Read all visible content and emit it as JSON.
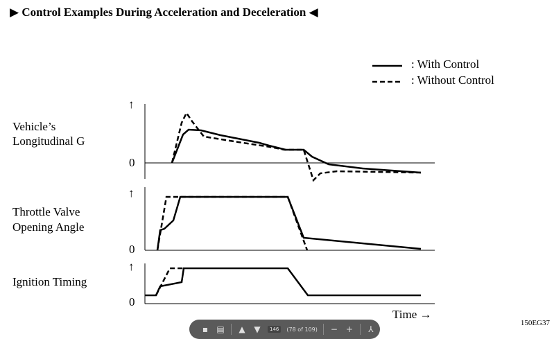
{
  "title": "▶ Control Examples During Acceleration and Deceleration ◀",
  "legend": {
    "with_control": ": With Control",
    "without_control": ": Without Control"
  },
  "panels": [
    {
      "label_line1": "Vehicle’s",
      "label_line2": "Longitudinal G",
      "zero": "0",
      "arrow": "↑"
    },
    {
      "label_line1": "Throttle Valve",
      "label_line2": "Opening Angle",
      "zero": "0",
      "arrow": "↑"
    },
    {
      "label_line1": "Ignition Timing",
      "label_line2": "",
      "zero": "0",
      "arrow": "↑"
    }
  ],
  "x_axis_label": "Time →",
  "figure_code": "150EG37",
  "toolbar": {
    "page_input": "146",
    "page_count": "(78 of 109)"
  },
  "chart_data": {
    "type": "line",
    "series_styles": {
      "with_control": "solid",
      "without_control": "dashed"
    },
    "panels": [
      {
        "name": "Vehicle’s Longitudinal G",
        "with_control": [
          [
            0,
            0
          ],
          [
            8,
            38
          ],
          [
            12,
            42
          ],
          [
            21,
            41
          ],
          [
            35,
            34
          ],
          [
            63,
            27
          ],
          [
            70,
            23
          ],
          [
            80,
            23
          ],
          [
            85,
            10
          ],
          [
            100,
            0
          ],
          [
            150,
            -15
          ]
        ],
        "without_control": [
          [
            0,
            0
          ],
          [
            8,
            65
          ],
          [
            12,
            80
          ],
          [
            18,
            55
          ],
          [
            35,
            30
          ],
          [
            63,
            24
          ],
          [
            70,
            23
          ],
          [
            80,
            23
          ],
          [
            85,
            -20
          ],
          [
            90,
            -15
          ],
          [
            150,
            -15
          ]
        ]
      },
      {
        "name": "Throttle Valve Opening Angle",
        "with_control": [
          [
            0,
            0
          ],
          [
            2,
            35
          ],
          [
            9,
            45
          ],
          [
            12,
            100
          ],
          [
            60,
            100
          ],
          [
            78,
            21
          ],
          [
            145,
            0
          ]
        ],
        "without_control": [
          [
            0,
            0
          ],
          [
            5,
            100
          ],
          [
            10,
            100
          ],
          [
            60,
            100
          ],
          [
            79,
            0
          ]
        ]
      },
      {
        "name": "Ignition Timing",
        "with_control": [
          [
            0,
            0
          ],
          [
            15,
            0
          ],
          [
            20,
            35
          ],
          [
            38,
            48
          ],
          [
            40,
            100
          ],
          [
            200,
            100
          ],
          [
            245,
            0
          ],
          [
            400,
            0
          ]
        ],
        "without_control": [
          [
            0,
            0
          ],
          [
            15,
            0
          ],
          [
            35,
            100
          ],
          [
            200,
            100
          ],
          [
            245,
            0
          ],
          [
            400,
            0
          ]
        ]
      }
    ]
  }
}
